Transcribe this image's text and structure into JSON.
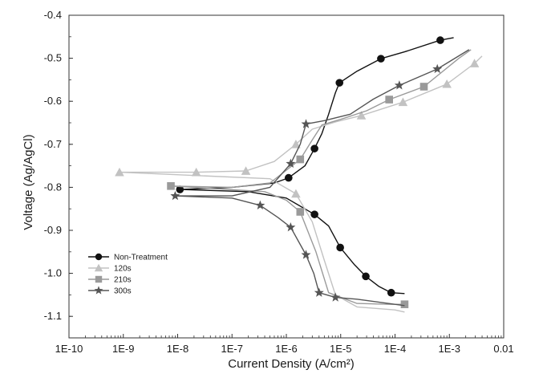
{
  "chart_data": {
    "type": "line",
    "title": "",
    "xlabel": "Current Density (A/cm²)",
    "ylabel": "Voltage (Ag/AgCl)",
    "xscale": "log",
    "xlim": [
      1e-10,
      0.01
    ],
    "ylim": [
      -1.15,
      -0.4
    ],
    "xtick_values": [
      1e-10,
      1e-09,
      1e-08,
      1e-07,
      1e-06,
      1e-05,
      0.0001,
      0.001,
      0.01
    ],
    "xtick_labels": [
      "1E-10",
      "1E-9",
      "1E-8",
      "1E-7",
      "1E-6",
      "1E-5",
      "1E-4",
      "1E-3",
      "0.01"
    ],
    "ytick_values": [
      -0.4,
      -0.5,
      -0.6,
      -0.7,
      -0.8,
      -0.9,
      -1.0,
      -1.1
    ],
    "ytick_labels": [
      "-0.4",
      "-0.5",
      "-0.6",
      "-0.7",
      "-0.8",
      "-0.9",
      "-1.0",
      "-1.1"
    ],
    "grid": false,
    "legend_position": "lower-left",
    "series": [
      {
        "name": "Non-Treatment",
        "color": "#111111",
        "marker": "circle",
        "anodic": [
          [
            1.1e-08,
            -0.805
          ],
          [
            1e-07,
            -0.8
          ],
          [
            6e-07,
            -0.79
          ],
          [
            1.1e-06,
            -0.778
          ],
          [
            2.2e-06,
            -0.75
          ],
          [
            3.3e-06,
            -0.71
          ],
          [
            4.5e-06,
            -0.675
          ],
          [
            6e-06,
            -0.63
          ],
          [
            8e-06,
            -0.58
          ],
          [
            9.5e-06,
            -0.557
          ],
          [
            2e-05,
            -0.53
          ],
          [
            5.5e-05,
            -0.501
          ],
          [
            0.00015,
            -0.485
          ],
          [
            0.00068,
            -0.458
          ],
          [
            0.0012,
            -0.452
          ]
        ],
        "cathodic": [
          [
            1.1e-08,
            -0.805
          ],
          [
            2e-07,
            -0.81
          ],
          [
            1e-06,
            -0.825
          ],
          [
            3.3e-06,
            -0.863
          ],
          [
            6e-06,
            -0.89
          ],
          [
            9.8e-06,
            -0.94
          ],
          [
            1.8e-05,
            -0.98
          ],
          [
            2.9e-05,
            -1.007
          ],
          [
            5e-05,
            -1.03
          ],
          [
            8.5e-05,
            -1.045
          ],
          [
            0.00015,
            -1.047
          ]
        ],
        "markers": [
          [
            1.1e-08,
            -0.805
          ],
          [
            1.1e-06,
            -0.778
          ],
          [
            3.3e-06,
            -0.71
          ],
          [
            9.5e-06,
            -0.557
          ],
          [
            5.5e-05,
            -0.501
          ],
          [
            0.00068,
            -0.458
          ],
          [
            3.3e-06,
            -0.863
          ],
          [
            9.8e-06,
            -0.94
          ],
          [
            2.9e-05,
            -1.007
          ],
          [
            8.5e-05,
            -1.045
          ]
        ]
      },
      {
        "name": "120s",
        "color": "#c2c2c2",
        "marker": "triangle",
        "anodic": [
          [
            8.5e-10,
            -0.765
          ],
          [
            2.2e-08,
            -0.765
          ],
          [
            1.8e-07,
            -0.762
          ],
          [
            6e-07,
            -0.74
          ],
          [
            1.5e-06,
            -0.7
          ],
          [
            3e-06,
            -0.665
          ],
          [
            8e-06,
            -0.648
          ],
          [
            2.4e-05,
            -0.633
          ],
          [
            0.00014,
            -0.602
          ],
          [
            0.0009,
            -0.56
          ],
          [
            0.0029,
            -0.512
          ],
          [
            0.004,
            -0.495
          ]
        ],
        "cathodic": [
          [
            8.5e-10,
            -0.765
          ],
          [
            5e-07,
            -0.78
          ],
          [
            1.5e-06,
            -0.815
          ],
          [
            3e-06,
            -0.88
          ],
          [
            5e-06,
            -0.97
          ],
          [
            8e-06,
            -1.05
          ],
          [
            2e-05,
            -1.078
          ],
          [
            0.0001,
            -1.085
          ],
          [
            0.00015,
            -1.09
          ]
        ],
        "markers": [
          [
            8.5e-10,
            -0.765
          ],
          [
            2.2e-08,
            -0.765
          ],
          [
            1.8e-07,
            -0.762
          ],
          [
            1.5e-06,
            -0.7
          ],
          [
            2.4e-05,
            -0.633
          ],
          [
            0.00014,
            -0.602
          ],
          [
            0.0009,
            -0.56
          ],
          [
            0.0029,
            -0.512
          ],
          [
            1.5e-06,
            -0.815
          ]
        ]
      },
      {
        "name": "210s",
        "color": "#9a9a9a",
        "marker": "square",
        "anodic": [
          [
            7.5e-09,
            -0.797
          ],
          [
            1e-07,
            -0.8
          ],
          [
            5e-07,
            -0.79
          ],
          [
            1.8e-06,
            -0.735
          ],
          [
            3e-06,
            -0.69
          ],
          [
            4.5e-06,
            -0.655
          ],
          [
            1e-05,
            -0.642
          ],
          [
            3e-05,
            -0.622
          ],
          [
            7.8e-05,
            -0.596
          ],
          [
            0.00034,
            -0.566
          ],
          [
            0.0015,
            -0.5
          ],
          [
            0.0025,
            -0.48
          ]
        ],
        "cathodic": [
          [
            7.5e-09,
            -0.797
          ],
          [
            4e-07,
            -0.81
          ],
          [
            1e-06,
            -0.83
          ],
          [
            1.8e-06,
            -0.857
          ],
          [
            3.5e-06,
            -0.95
          ],
          [
            6e-06,
            -1.045
          ],
          [
            2e-05,
            -1.07
          ],
          [
            8e-05,
            -1.072
          ],
          [
            0.00015,
            -1.072
          ]
        ],
        "markers": [
          [
            7.5e-09,
            -0.797
          ],
          [
            1.8e-06,
            -0.735
          ],
          [
            7.8e-05,
            -0.596
          ],
          [
            0.00034,
            -0.566
          ],
          [
            1.8e-06,
            -0.857
          ],
          [
            0.00015,
            -1.072
          ]
        ]
      },
      {
        "name": "300s",
        "color": "#555555",
        "marker": "star",
        "anodic": [
          [
            9e-09,
            -0.82
          ],
          [
            1e-07,
            -0.82
          ],
          [
            5e-07,
            -0.8
          ],
          [
            1.2e-06,
            -0.745
          ],
          [
            1.8e-06,
            -0.7
          ],
          [
            2.3e-06,
            -0.653
          ],
          [
            5e-06,
            -0.645
          ],
          [
            1.5e-05,
            -0.63
          ],
          [
            4e-05,
            -0.595
          ],
          [
            0.00012,
            -0.563
          ],
          [
            0.0006,
            -0.525
          ],
          [
            0.0023,
            -0.48
          ]
        ],
        "cathodic": [
          [
            9e-09,
            -0.82
          ],
          [
            1e-07,
            -0.825
          ],
          [
            3.3e-07,
            -0.842
          ],
          [
            7e-07,
            -0.87
          ],
          [
            1.2e-06,
            -0.893
          ],
          [
            2.3e-06,
            -0.957
          ],
          [
            3.2e-06,
            -1.0
          ],
          [
            4e-06,
            -1.045
          ],
          [
            8e-06,
            -1.056
          ],
          [
            2e-05,
            -1.06
          ],
          [
            0.00015,
            -1.075
          ]
        ],
        "markers": [
          [
            9e-09,
            -0.82
          ],
          [
            1.2e-06,
            -0.745
          ],
          [
            2.3e-06,
            -0.653
          ],
          [
            0.00012,
            -0.563
          ],
          [
            0.0006,
            -0.525
          ],
          [
            3.3e-07,
            -0.842
          ],
          [
            1.2e-06,
            -0.893
          ],
          [
            2.3e-06,
            -0.957
          ],
          [
            4e-06,
            -1.045
          ],
          [
            8e-06,
            -1.056
          ]
        ]
      }
    ]
  }
}
